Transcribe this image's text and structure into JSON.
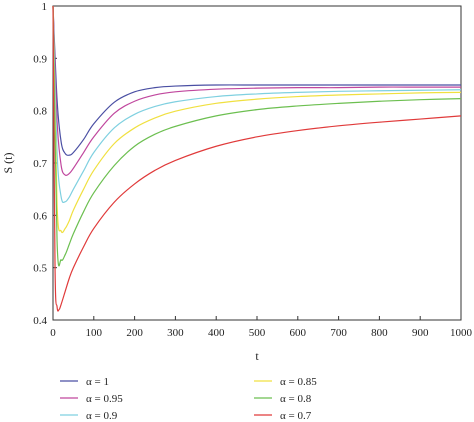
{
  "chart_data": {
    "type": "line",
    "xlabel": "t",
    "ylabel": "S (t)",
    "xlim": [
      0,
      1000
    ],
    "ylim": [
      0.4,
      1.0
    ],
    "xticks": [
      0,
      100,
      200,
      300,
      400,
      500,
      600,
      700,
      800,
      900,
      1000
    ],
    "yticks": [
      0.4,
      0.5,
      0.6,
      0.7,
      0.8,
      0.9,
      1.0
    ],
    "ytick_labels": [
      "0.4",
      "0.5",
      "0.6",
      "0.7",
      "0.8",
      "0.9",
      "1"
    ],
    "grid": false,
    "legend_position": "bottom",
    "series": [
      {
        "name": "α = 1",
        "color": "#4a4fa3",
        "x": [
          0,
          10,
          20,
          30,
          40,
          50,
          75,
          100,
          150,
          200,
          250,
          300,
          400,
          500,
          600,
          700,
          800,
          900,
          1000
        ],
        "y": [
          1.0,
          0.82,
          0.74,
          0.718,
          0.715,
          0.72,
          0.745,
          0.775,
          0.816,
          0.836,
          0.844,
          0.847,
          0.849,
          0.849,
          0.849,
          0.849,
          0.849,
          0.849,
          0.849
        ]
      },
      {
        "name": "α = 0.95",
        "color": "#c0479e",
        "x": [
          0,
          10,
          20,
          30,
          40,
          50,
          75,
          100,
          150,
          200,
          250,
          300,
          400,
          500,
          600,
          700,
          800,
          900,
          1000
        ],
        "y": [
          1.0,
          0.78,
          0.695,
          0.677,
          0.68,
          0.69,
          0.72,
          0.75,
          0.795,
          0.818,
          0.83,
          0.836,
          0.841,
          0.843,
          0.844,
          0.844,
          0.845,
          0.845,
          0.845
        ]
      },
      {
        "name": "α = 0.9",
        "color": "#7fd0e0",
        "x": [
          0,
          10,
          20,
          30,
          40,
          50,
          75,
          100,
          150,
          200,
          250,
          300,
          400,
          500,
          600,
          700,
          800,
          900,
          1000
        ],
        "y": [
          1.0,
          0.72,
          0.635,
          0.626,
          0.635,
          0.65,
          0.685,
          0.72,
          0.767,
          0.793,
          0.808,
          0.817,
          0.827,
          0.832,
          0.835,
          0.837,
          0.838,
          0.839,
          0.84
        ]
      },
      {
        "name": "α = 0.85",
        "color": "#f0e040",
        "x": [
          0,
          10,
          20,
          30,
          40,
          50,
          75,
          100,
          150,
          200,
          250,
          300,
          400,
          500,
          600,
          700,
          800,
          900,
          1000
        ],
        "y": [
          1.0,
          0.62,
          0.57,
          0.575,
          0.59,
          0.61,
          0.65,
          0.686,
          0.737,
          0.767,
          0.786,
          0.799,
          0.814,
          0.822,
          0.827,
          0.83,
          0.832,
          0.834,
          0.835
        ]
      },
      {
        "name": "α = 0.8",
        "color": "#6cbf50",
        "x": [
          0,
          10,
          20,
          30,
          40,
          50,
          75,
          100,
          150,
          200,
          250,
          300,
          400,
          500,
          600,
          700,
          800,
          900,
          1000
        ],
        "y": [
          1.0,
          0.55,
          0.515,
          0.525,
          0.545,
          0.565,
          0.607,
          0.643,
          0.695,
          0.732,
          0.755,
          0.77,
          0.79,
          0.802,
          0.809,
          0.814,
          0.818,
          0.821,
          0.823
        ]
      },
      {
        "name": "α = 0.7",
        "color": "#e03a3a",
        "x": [
          0,
          5,
          10,
          15,
          20,
          30,
          40,
          50,
          75,
          100,
          150,
          200,
          250,
          300,
          400,
          500,
          600,
          700,
          800,
          900,
          1000
        ],
        "y": [
          1.0,
          0.5,
          0.425,
          0.42,
          0.43,
          0.455,
          0.48,
          0.5,
          0.54,
          0.575,
          0.625,
          0.66,
          0.686,
          0.705,
          0.732,
          0.75,
          0.762,
          0.771,
          0.778,
          0.784,
          0.79
        ]
      }
    ]
  }
}
